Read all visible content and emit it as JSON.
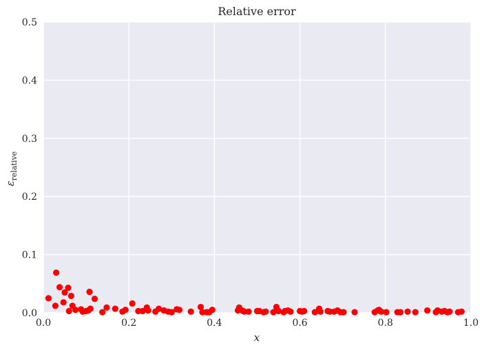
{
  "chart_data": {
    "type": "scatter",
    "title": "Relative error",
    "xlabel": "x",
    "ylabel": "ε",
    "ylabel_sub": "relative",
    "xlim": [
      0.0,
      1.0
    ],
    "ylim": [
      0.0,
      0.5
    ],
    "xticks": [
      "0.0",
      "0.2",
      "0.4",
      "0.6",
      "0.8",
      "1.0"
    ],
    "xtick_values": [
      0.0,
      0.2,
      0.4,
      0.6,
      0.8,
      1.0
    ],
    "yticks": [
      "0.0",
      "0.1",
      "0.2",
      "0.3",
      "0.4",
      "0.5"
    ],
    "ytick_values": [
      0.0,
      0.1,
      0.2,
      0.3,
      0.4,
      0.5
    ],
    "grid": true,
    "background": "#eaeaf2",
    "grid_color": "#ffffff",
    "marker_color": "#ff0000",
    "series": [
      {
        "points": [
          [
            0.012,
            0.025
          ],
          [
            0.028,
            0.012
          ],
          [
            0.03,
            0.069
          ],
          [
            0.038,
            0.044
          ],
          [
            0.047,
            0.018
          ],
          [
            0.05,
            0.035
          ],
          [
            0.058,
            0.043
          ],
          [
            0.06,
            0.003
          ],
          [
            0.065,
            0.029
          ],
          [
            0.068,
            0.012
          ],
          [
            0.075,
            0.005
          ],
          [
            0.088,
            0.006
          ],
          [
            0.092,
            0.002
          ],
          [
            0.1,
            0.003
          ],
          [
            0.105,
            0.004
          ],
          [
            0.108,
            0.036
          ],
          [
            0.11,
            0.007
          ],
          [
            0.12,
            0.024
          ],
          [
            0.138,
            0.001
          ],
          [
            0.148,
            0.009
          ],
          [
            0.168,
            0.007
          ],
          [
            0.185,
            0.002
          ],
          [
            0.192,
            0.005
          ],
          [
            0.208,
            0.016
          ],
          [
            0.222,
            0.003
          ],
          [
            0.232,
            0.003
          ],
          [
            0.242,
            0.009
          ],
          [
            0.245,
            0.004
          ],
          [
            0.262,
            0.002
          ],
          [
            0.27,
            0.007
          ],
          [
            0.282,
            0.004
          ],
          [
            0.292,
            0.002
          ],
          [
            0.3,
            0.001
          ],
          [
            0.312,
            0.006
          ],
          [
            0.318,
            0.005
          ],
          [
            0.345,
            0.002
          ],
          [
            0.368,
            0.01
          ],
          [
            0.372,
            0.001
          ],
          [
            0.382,
            0.001
          ],
          [
            0.388,
            0.001
          ],
          [
            0.395,
            0.005
          ],
          [
            0.455,
            0.004
          ],
          [
            0.458,
            0.009
          ],
          [
            0.465,
            0.004
          ],
          [
            0.47,
            0.002
          ],
          [
            0.48,
            0.002
          ],
          [
            0.5,
            0.003
          ],
          [
            0.505,
            0.003
          ],
          [
            0.515,
            0.001
          ],
          [
            0.52,
            0.002
          ],
          [
            0.538,
            0.001
          ],
          [
            0.545,
            0.01
          ],
          [
            0.548,
            0.004
          ],
          [
            0.55,
            0.003
          ],
          [
            0.562,
            0.001
          ],
          [
            0.565,
            0.003
          ],
          [
            0.572,
            0.004
          ],
          [
            0.578,
            0.002
          ],
          [
            0.6,
            0.003
          ],
          [
            0.605,
            0.002
          ],
          [
            0.61,
            0.003
          ],
          [
            0.635,
            0.001
          ],
          [
            0.645,
            0.007
          ],
          [
            0.648,
            0.002
          ],
          [
            0.665,
            0.003
          ],
          [
            0.67,
            0.002
          ],
          [
            0.68,
            0.002
          ],
          [
            0.688,
            0.004
          ],
          [
            0.695,
            0.001
          ],
          [
            0.702,
            0.001
          ],
          [
            0.728,
            0.001
          ],
          [
            0.775,
            0.001
          ],
          [
            0.782,
            0.004
          ],
          [
            0.785,
            0.005
          ],
          [
            0.79,
            0.002
          ],
          [
            0.802,
            0.001
          ],
          [
            0.828,
            0.001
          ],
          [
            0.835,
            0.001
          ],
          [
            0.852,
            0.002
          ],
          [
            0.87,
            0.001
          ],
          [
            0.898,
            0.004
          ],
          [
            0.918,
            0.001
          ],
          [
            0.922,
            0.004
          ],
          [
            0.932,
            0.002
          ],
          [
            0.938,
            0.003
          ],
          [
            0.945,
            0.001
          ],
          [
            0.95,
            0.002
          ],
          [
            0.97,
            0.001
          ],
          [
            0.978,
            0.002
          ]
        ]
      }
    ]
  }
}
